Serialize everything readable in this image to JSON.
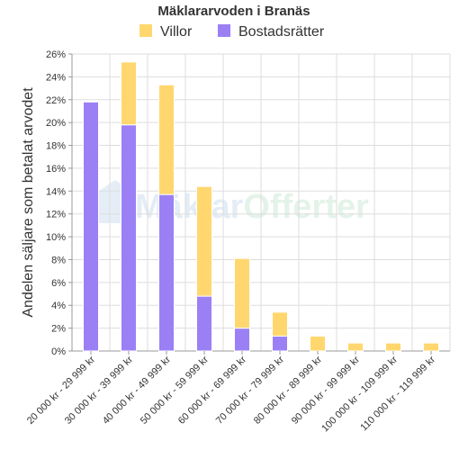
{
  "chart_data": {
    "type": "bar",
    "stacked": true,
    "title": "Mäklararvoden i Branäs",
    "ylabel": "Andelen säljare som betalat arvodet",
    "xlabel": "",
    "ylim": [
      0,
      26
    ],
    "yticks": [
      "0%",
      "2%",
      "4%",
      "6%",
      "8%",
      "10%",
      "12%",
      "14%",
      "16%",
      "18%",
      "20%",
      "22%",
      "24%",
      "26%"
    ],
    "ytick_values": [
      0,
      2,
      4,
      6,
      8,
      10,
      12,
      14,
      16,
      18,
      20,
      22,
      24,
      26
    ],
    "categories": [
      "20 000 kr - 29 999 kr",
      "30 000 kr - 39 999 kr",
      "40 000 kr - 49 999 kr",
      "50 000 kr - 59 999 kr",
      "60 000 kr - 69 999 kr",
      "70 000 kr - 79 999 kr",
      "80 000 kr - 89 999 kr",
      "90 000 kr - 99 999 kr",
      "100 000 kr - 109 999 kr",
      "110 000 kr - 119 999 kr"
    ],
    "series": [
      {
        "name": "Bostadsrätter",
        "color": "#9b80f5",
        "values": [
          21.8,
          19.8,
          13.7,
          4.8,
          2.0,
          1.3,
          0,
          0,
          0,
          0
        ]
      },
      {
        "name": "Villor",
        "color": "#ffd76e",
        "values": [
          0,
          5.5,
          9.6,
          9.6,
          6.1,
          2.1,
          1.3,
          0.7,
          0.7,
          0.7
        ]
      }
    ],
    "legend": [
      {
        "name": "Villor",
        "color": "#ffd76e"
      },
      {
        "name": "Bostadsrätter",
        "color": "#9b80f5"
      }
    ],
    "legend_position": "top",
    "grid": true
  },
  "watermark": {
    "part1": "Mäklar",
    "part2": "Offerter",
    "color1": "#cfe0f0",
    "color2": "#cfead8"
  }
}
